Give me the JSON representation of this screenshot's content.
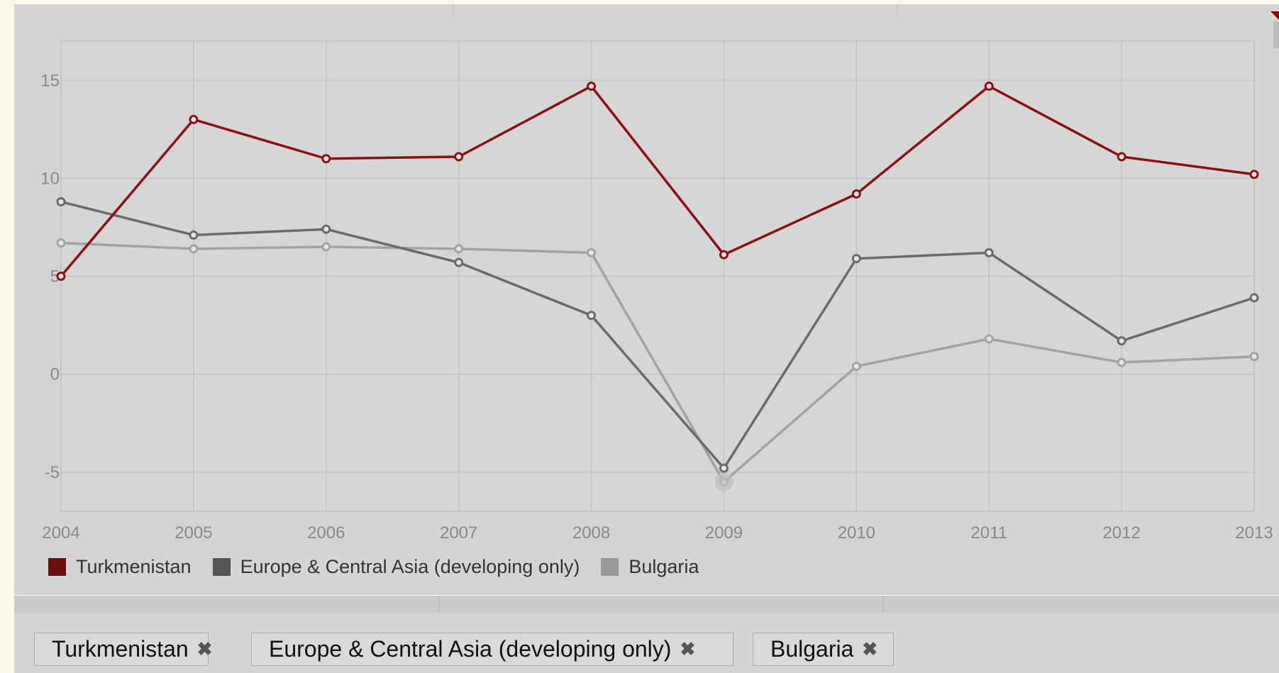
{
  "chart_data": {
    "type": "line",
    "x": [
      2004,
      2005,
      2006,
      2007,
      2008,
      2009,
      2010,
      2011,
      2012,
      2013
    ],
    "ylim": [
      -7,
      17
    ],
    "yticks": [
      -5,
      0,
      5,
      10,
      15
    ],
    "grid": true,
    "legend_position": "bottom-left",
    "series": [
      {
        "name": "Turkmenistan",
        "color": "#8b1116",
        "values": [
          5.0,
          13.0,
          11.0,
          11.1,
          14.7,
          6.1,
          9.2,
          14.7,
          11.1,
          10.2
        ]
      },
      {
        "name": "Europe & Central Asia (developing only)",
        "color": "#6b6b6b",
        "values": [
          8.8,
          7.1,
          7.4,
          5.7,
          3.0,
          -4.8,
          5.9,
          6.2,
          1.7,
          3.9
        ]
      },
      {
        "name": "Bulgaria",
        "color": "#a3a3a3",
        "values": [
          6.7,
          6.4,
          6.5,
          6.4,
          6.2,
          -5.5,
          0.4,
          1.8,
          0.6,
          0.9
        ]
      }
    ]
  },
  "legend": {
    "items": [
      {
        "label": "Turkmenistan",
        "color": "#6e0f0f"
      },
      {
        "label": "Europe & Central Asia (developing only)",
        "color": "#555555"
      },
      {
        "label": "Bulgaria",
        "color": "#999999"
      }
    ]
  },
  "chips": [
    {
      "label": "Turkmenistan",
      "icon": "close-icon"
    },
    {
      "label": "Europe & Central Asia (developing only)",
      "icon": "close-icon"
    },
    {
      "label": "Bulgaria",
      "icon": "close-icon"
    }
  ]
}
